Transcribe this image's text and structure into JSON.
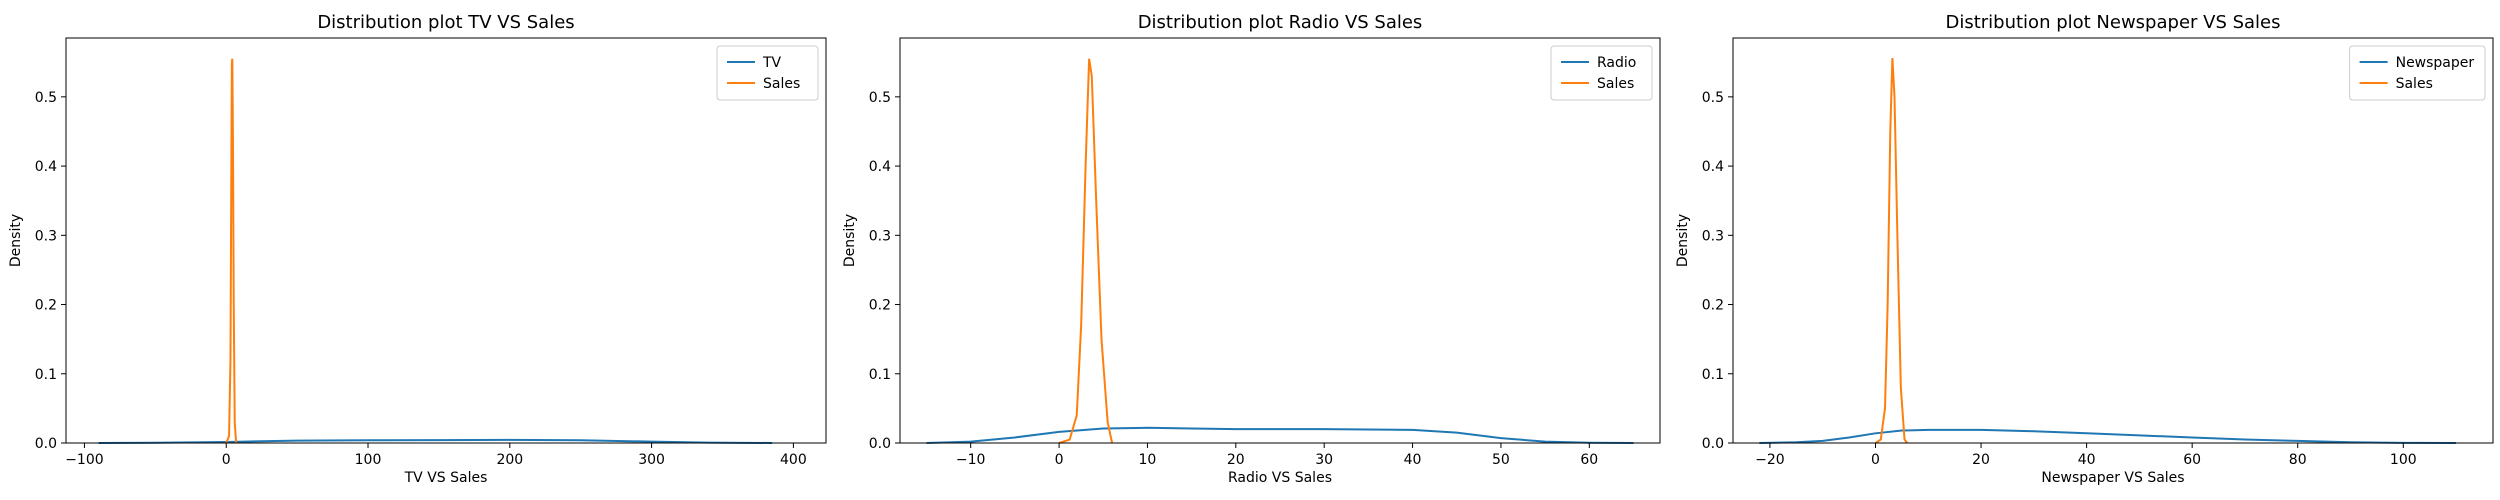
{
  "colors": {
    "tv": "#1f77b4",
    "radio": "#1f77b4",
    "newspaper": "#1f77b4",
    "sales": "#ff7f0e",
    "axis": "#000000",
    "legend_border": "#cccccc"
  },
  "chart_data": [
    {
      "type": "line",
      "title": "Distribution plot TV VS Sales",
      "xlabel": "TV VS Sales",
      "ylabel": "Density",
      "xlim": [
        -113,
        423
      ],
      "ylim": [
        0,
        0.585
      ],
      "xticks": [
        -100,
        0,
        100,
        200,
        300,
        400
      ],
      "xtick_labels": [
        "−100",
        "0",
        "100",
        "200",
        "300",
        "400"
      ],
      "yticks": [
        0,
        0.1,
        0.2,
        0.3,
        0.4,
        0.5
      ],
      "ytick_labels": [
        "0.0",
        "0.1",
        "0.2",
        "0.3",
        "0.4",
        "0.5"
      ],
      "legend_position": "upper right",
      "series": [
        {
          "name": "TV",
          "color_key": "tv",
          "points": [
            [
              -90,
              0
            ],
            [
              -50,
              0.0003
            ],
            [
              0,
              0.0015
            ],
            [
              50,
              0.0035
            ],
            [
              100,
              0.004
            ],
            [
              150,
              0.0042
            ],
            [
              200,
              0.0045
            ],
            [
              250,
              0.004
            ],
            [
              300,
              0.002
            ],
            [
              340,
              0.0006
            ],
            [
              385,
              0
            ]
          ]
        },
        {
          "name": "Sales",
          "color_key": "sales",
          "points": [
            [
              0,
              0
            ],
            [
              2,
              0.01
            ],
            [
              3,
              0.12
            ],
            [
              3.5,
              0.35
            ],
            [
              4.0,
              0.55
            ],
            [
              4.3,
              0.555
            ],
            [
              4.7,
              0.45
            ],
            [
              5.3,
              0.2
            ],
            [
              6,
              0.03
            ],
            [
              7,
              0
            ]
          ]
        }
      ]
    },
    {
      "type": "line",
      "title": "Distribution plot Radio VS Sales",
      "xlabel": "Radio VS Sales",
      "ylabel": "Density",
      "xlim": [
        -18,
        68
      ],
      "ylim": [
        0,
        0.585
      ],
      "xticks": [
        -10,
        0,
        10,
        20,
        30,
        40,
        50,
        60
      ],
      "xtick_labels": [
        "−10",
        "0",
        "10",
        "20",
        "30",
        "40",
        "50",
        "60"
      ],
      "yticks": [
        0,
        0.1,
        0.2,
        0.3,
        0.4,
        0.5
      ],
      "ytick_labels": [
        "0.0",
        "0.1",
        "0.2",
        "0.3",
        "0.4",
        "0.5"
      ],
      "legend_position": "upper right",
      "series": [
        {
          "name": "Radio",
          "color_key": "radio",
          "points": [
            [
              -15,
              0
            ],
            [
              -10,
              0.002
            ],
            [
              -5,
              0.008
            ],
            [
              0,
              0.016
            ],
            [
              5,
              0.021
            ],
            [
              10,
              0.022
            ],
            [
              15,
              0.021
            ],
            [
              20,
              0.02
            ],
            [
              30,
              0.02
            ],
            [
              40,
              0.019
            ],
            [
              45,
              0.015
            ],
            [
              50,
              0.007
            ],
            [
              55,
              0.002
            ],
            [
              60,
              0.0003
            ],
            [
              65,
              0
            ]
          ]
        },
        {
          "name": "Sales",
          "color_key": "sales",
          "points": [
            [
              0,
              0
            ],
            [
              1.2,
              0.005
            ],
            [
              2.0,
              0.04
            ],
            [
              2.5,
              0.17
            ],
            [
              3.0,
              0.4
            ],
            [
              3.4,
              0.555
            ],
            [
              3.7,
              0.53
            ],
            [
              4.2,
              0.35
            ],
            [
              4.8,
              0.15
            ],
            [
              5.5,
              0.03
            ],
            [
              6.0,
              0
            ]
          ]
        }
      ]
    },
    {
      "type": "line",
      "title": "Distribution plot Newspaper VS Sales",
      "xlabel": "Newspaper VS Sales",
      "ylabel": "Density",
      "xlim": [
        -27,
        117
      ],
      "ylim": [
        0,
        0.585
      ],
      "xticks": [
        -20,
        0,
        20,
        40,
        60,
        80,
        100
      ],
      "xtick_labels": [
        "−20",
        "0",
        "20",
        "40",
        "60",
        "80",
        "100"
      ],
      "yticks": [
        0,
        0.1,
        0.2,
        0.3,
        0.4,
        0.5
      ],
      "ytick_labels": [
        "0.0",
        "0.1",
        "0.2",
        "0.3",
        "0.4",
        "0.5"
      ],
      "legend_position": "upper right",
      "series": [
        {
          "name": "Newspaper",
          "color_key": "newspaper",
          "points": [
            [
              -22,
              0
            ],
            [
              -15,
              0.001
            ],
            [
              -10,
              0.003
            ],
            [
              -5,
              0.008
            ],
            [
              0,
              0.014
            ],
            [
              5,
              0.018
            ],
            [
              10,
              0.019
            ],
            [
              15,
              0.019
            ],
            [
              20,
              0.019
            ],
            [
              30,
              0.017
            ],
            [
              40,
              0.014
            ],
            [
              50,
              0.011
            ],
            [
              60,
              0.008
            ],
            [
              70,
              0.005
            ],
            [
              80,
              0.003
            ],
            [
              90,
              0.001
            ],
            [
              100,
              0.0002
            ],
            [
              110,
              0
            ]
          ]
        },
        {
          "name": "Sales",
          "color_key": "sales",
          "points": [
            [
              0,
              0
            ],
            [
              1.0,
              0.005
            ],
            [
              1.8,
              0.05
            ],
            [
              2.3,
              0.2
            ],
            [
              2.8,
              0.45
            ],
            [
              3.2,
              0.556
            ],
            [
              3.6,
              0.5
            ],
            [
              4.2,
              0.28
            ],
            [
              4.8,
              0.08
            ],
            [
              5.5,
              0.005
            ],
            [
              6.0,
              0
            ]
          ]
        }
      ]
    }
  ]
}
